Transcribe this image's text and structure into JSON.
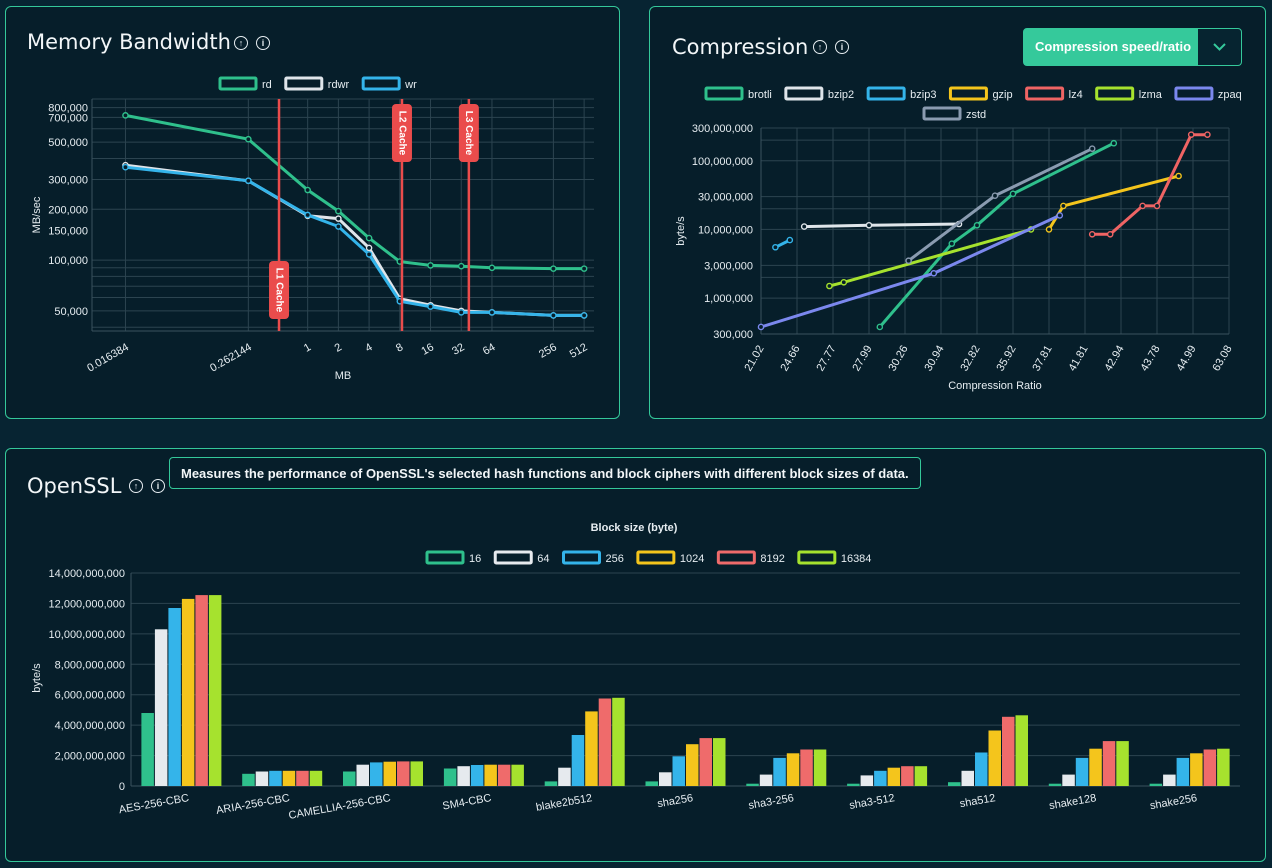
{
  "panels": {
    "memory": {
      "title": "Memory Bandwidth"
    },
    "compression": {
      "title": "Compression",
      "selector": {
        "label": "Compression speed/ratio"
      }
    },
    "openssl": {
      "title": "OpenSSL",
      "description": "Measures the performance of OpenSSL's selected hash functions and block ciphers with different block sizes of data."
    }
  },
  "chart_data": [
    {
      "id": "memory",
      "type": "line",
      "xlabel": "MB",
      "ylabel": "MB/sec",
      "y_scale": "log",
      "x_scale": "log",
      "ylim": [
        38000,
        900000
      ],
      "x_ticks": [
        "0.016384",
        "0.262144",
        "1",
        "2",
        "4",
        "8",
        "16",
        "32",
        "64",
        "256",
        "512"
      ],
      "y_ticks": [
        "50,000",
        "100,000",
        "150,000",
        "200,000",
        "300,000",
        "500,000",
        "700,000",
        "800,000"
      ],
      "legend": "top",
      "annotations": [
        {
          "label": "L1 Cache",
          "x": 0.524
        },
        {
          "label": "L2 Cache",
          "x": 8.4
        },
        {
          "label": "L3 Cache",
          "x": 38
        }
      ],
      "series": [
        {
          "name": "rd",
          "color": "#2fc08c",
          "points": [
            [
              0.016384,
              720000
            ],
            [
              0.262144,
              520000
            ],
            [
              1,
              260000
            ],
            [
              2,
              195000
            ],
            [
              4,
              135000
            ],
            [
              8,
              98000
            ],
            [
              16,
              93000
            ],
            [
              32,
              92000
            ],
            [
              64,
              90000
            ],
            [
              256,
              89000
            ],
            [
              512,
              89000
            ]
          ]
        },
        {
          "name": "rdwr",
          "color": "#dfe5ea",
          "points": [
            [
              0.016384,
              365000
            ],
            [
              0.262144,
              295000
            ],
            [
              1,
              183000
            ],
            [
              2,
              176000
            ],
            [
              4,
              118000
            ],
            [
              8,
              59000
            ],
            [
              16,
              54000
            ],
            [
              32,
              50000
            ],
            [
              64,
              49000
            ],
            [
              256,
              47000
            ],
            [
              512,
              47000
            ]
          ]
        },
        {
          "name": "wr",
          "color": "#34b4ea",
          "points": [
            [
              0.016384,
              355000
            ],
            [
              0.262144,
              295000
            ],
            [
              1,
              185000
            ],
            [
              2,
              158000
            ],
            [
              4,
              108000
            ],
            [
              8,
              57000
            ],
            [
              16,
              53000
            ],
            [
              32,
              49000
            ],
            [
              64,
              49000
            ],
            [
              256,
              47000
            ],
            [
              512,
              47000
            ]
          ]
        }
      ]
    },
    {
      "id": "compression",
      "type": "line",
      "xlabel": "Compression Ratio",
      "ylabel": "byte/s",
      "y_scale": "log",
      "ylim": [
        300000,
        300000000
      ],
      "x_ticks": [
        "21.02",
        "24.66",
        "27.77",
        "27.99",
        "30.26",
        "30.94",
        "32.82",
        "35.92",
        "37.81",
        "41.81",
        "42.94",
        "43.78",
        "44.99",
        "63.08"
      ],
      "y_ticks": [
        "300,000",
        "1,000,000",
        "3,000,000",
        "10,000,000",
        "30,000,000",
        "100,000,000",
        "300,000,000"
      ],
      "legend": "top",
      "series": [
        {
          "name": "brotli",
          "color": "#2fc08c",
          "points": [
            [
              3.3,
              380000
            ],
            [
              5.3,
              6200000
            ],
            [
              6.0,
              11500000
            ],
            [
              7.0,
              33000000
            ],
            [
              9.8,
              180000000
            ]
          ]
        },
        {
          "name": "bzip2",
          "color": "#dfe5ea",
          "points": [
            [
              1.2,
              11000000
            ],
            [
              3.0,
              11500000
            ],
            [
              5.5,
              12000000
            ]
          ]
        },
        {
          "name": "bzip3",
          "color": "#34b4ea",
          "points": [
            [
              0.4,
              5500000
            ],
            [
              0.8,
              7000000
            ]
          ]
        },
        {
          "name": "gzip",
          "color": "#f4c51c",
          "points": [
            [
              8.0,
              10000000
            ],
            [
              8.4,
              22000000
            ],
            [
              11.6,
              60000000
            ]
          ]
        },
        {
          "name": "lz4",
          "color": "#ef6464",
          "points": [
            [
              9.2,
              8500000
            ],
            [
              9.7,
              8500000
            ],
            [
              10.6,
              22000000
            ],
            [
              11.0,
              22000000
            ],
            [
              11.95,
              240000000
            ],
            [
              12.4,
              240000000
            ]
          ]
        },
        {
          "name": "lzma",
          "color": "#a6e22e",
          "points": [
            [
              1.9,
              1500000
            ],
            [
              2.3,
              1700000
            ],
            [
              7.5,
              10000000
            ]
          ]
        },
        {
          "name": "zpaq",
          "color": "#7b88ee",
          "points": [
            [
              0,
              380000
            ],
            [
              4.8,
              2300000
            ],
            [
              8.3,
              16000000
            ]
          ]
        },
        {
          "name": "zstd",
          "color": "#8a9bb0",
          "points": [
            [
              4.1,
              3500000
            ],
            [
              6.5,
              31000000
            ],
            [
              9.2,
              150000000
            ]
          ]
        }
      ]
    },
    {
      "id": "openssl",
      "type": "bar",
      "title": "Block size (byte)",
      "ylabel": "byte/s",
      "ylim": [
        0,
        14000000000
      ],
      "y_ticks": [
        "0",
        "2,000,000,000",
        "4,000,000,000",
        "6,000,000,000",
        "8,000,000,000",
        "10,000,000,000",
        "12,000,000,000",
        "14,000,000,000"
      ],
      "legend": "top",
      "categories": [
        "AES-256-CBC",
        "ARIA-256-CBC",
        "CAMELLIA-256-CBC",
        "SM4-CBC",
        "blake2b512",
        "sha256",
        "sha3-256",
        "sha3-512",
        "sha512",
        "shake128",
        "shake256"
      ],
      "series": [
        {
          "name": "16",
          "color": "#2fc08c",
          "values": [
            4800000000,
            800000000,
            950000000,
            1150000000,
            300000000,
            300000000,
            150000000,
            150000000,
            250000000,
            150000000,
            150000000
          ]
        },
        {
          "name": "64",
          "color": "#e6eaee",
          "values": [
            10300000000,
            950000000,
            1400000000,
            1300000000,
            1200000000,
            900000000,
            750000000,
            700000000,
            1000000000,
            750000000,
            750000000
          ]
        },
        {
          "name": "256",
          "color": "#34b4ea",
          "values": [
            11700000000,
            1000000000,
            1550000000,
            1380000000,
            3350000000,
            1950000000,
            1850000000,
            1000000000,
            2200000000,
            1850000000,
            1850000000
          ]
        },
        {
          "name": "1024",
          "color": "#f4c51c",
          "values": [
            12300000000,
            1000000000,
            1600000000,
            1400000000,
            4900000000,
            2750000000,
            2150000000,
            1200000000,
            3650000000,
            2450000000,
            2150000000
          ]
        },
        {
          "name": "8192",
          "color": "#ef6b6b",
          "values": [
            12550000000,
            1000000000,
            1620000000,
            1400000000,
            5750000000,
            3150000000,
            2400000000,
            1300000000,
            4550000000,
            2950000000,
            2400000000
          ]
        },
        {
          "name": "16384",
          "color": "#a6e22e",
          "values": [
            12550000000,
            1000000000,
            1620000000,
            1400000000,
            5800000000,
            3150000000,
            2400000000,
            1300000000,
            4650000000,
            2950000000,
            2450000000
          ]
        }
      ]
    }
  ]
}
